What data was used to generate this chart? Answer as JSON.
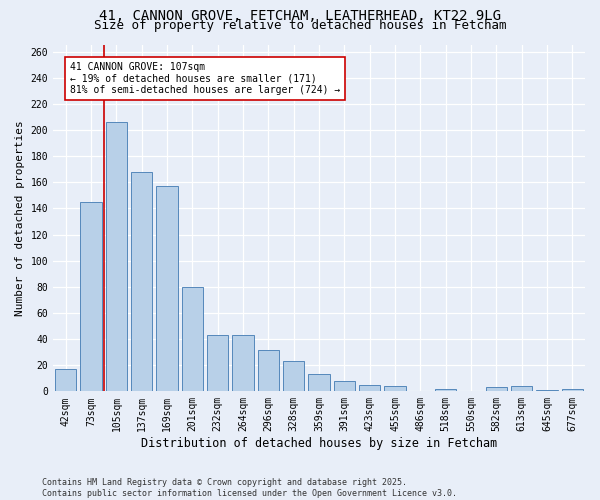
{
  "title_line1": "41, CANNON GROVE, FETCHAM, LEATHERHEAD, KT22 9LG",
  "title_line2": "Size of property relative to detached houses in Fetcham",
  "xlabel": "Distribution of detached houses by size in Fetcham",
  "ylabel": "Number of detached properties",
  "footnote": "Contains HM Land Registry data © Crown copyright and database right 2025.\nContains public sector information licensed under the Open Government Licence v3.0.",
  "categories": [
    "42sqm",
    "73sqm",
    "105sqm",
    "137sqm",
    "169sqm",
    "201sqm",
    "232sqm",
    "264sqm",
    "296sqm",
    "328sqm",
    "359sqm",
    "391sqm",
    "423sqm",
    "455sqm",
    "486sqm",
    "518sqm",
    "550sqm",
    "582sqm",
    "613sqm",
    "645sqm",
    "677sqm"
  ],
  "values": [
    17,
    145,
    206,
    168,
    157,
    80,
    43,
    43,
    32,
    23,
    13,
    8,
    5,
    4,
    0,
    2,
    0,
    3,
    4,
    1,
    2
  ],
  "bar_color": "#b8d0e8",
  "bar_edge_color": "#5588bb",
  "subject_line_color": "#cc0000",
  "annotation_text": "41 CANNON GROVE: 107sqm\n← 19% of detached houses are smaller (171)\n81% of semi-detached houses are larger (724) →",
  "annotation_box_color": "#cc0000",
  "ylim": [
    0,
    265
  ],
  "yticks": [
    0,
    20,
    40,
    60,
    80,
    100,
    120,
    140,
    160,
    180,
    200,
    220,
    240,
    260
  ],
  "background_color": "#e8eef8",
  "grid_color": "#ffffff",
  "title_fontsize": 10,
  "subtitle_fontsize": 9,
  "axis_label_fontsize": 8.5,
  "tick_fontsize": 7,
  "ylabel_fontsize": 8
}
